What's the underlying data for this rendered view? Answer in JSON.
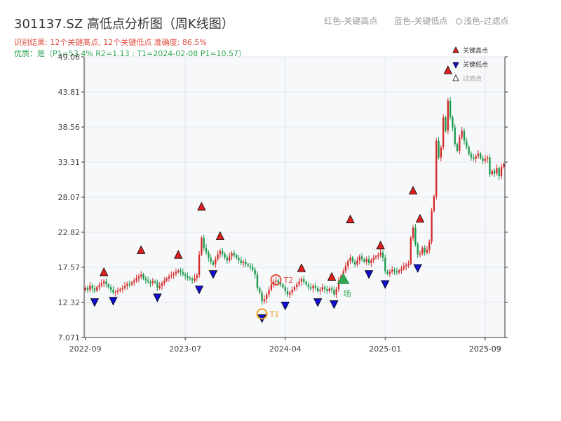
{
  "title": "301137.SZ 高低点分析图（周K线图）",
  "top_legend": {
    "red": "红色-关键高点",
    "blue": "蓝色-关键低点",
    "gray": "浅色-过滤点"
  },
  "subtitle1": "识别结果: 12个关键高点, 12个关键低点  准确度: 86.5%",
  "subtitle2": "优质：是（P1=53.4%  R2=1.13 ; T1=2024-02-08 P1=10.57）",
  "colors": {
    "up": "#d42a2a",
    "down": "#1a9a4a",
    "high_marker": "#e02020",
    "low_marker": "#1010d0",
    "grid": "#e3e7ed",
    "plot_bg": "#f6f8fa",
    "t1": "#f0a020",
    "t2": "#e05040",
    "launch": "#2fa552"
  },
  "chart_data": {
    "type": "candlestick",
    "ylim": [
      7.071,
      49.06
    ],
    "y_ticks": [
      "7.071",
      "12.32",
      "17.57",
      "22.82",
      "28.07",
      "33.31",
      "38.56",
      "43.81",
      "49.06"
    ],
    "x_ticks": [
      {
        "week": 0,
        "label": "2022-09"
      },
      {
        "week": 43,
        "label": "2023-07"
      },
      {
        "week": 86,
        "label": "2024-04"
      },
      {
        "week": 129,
        "label": "2025-01"
      },
      {
        "week": 172,
        "label": "2025-09"
      },
      {
        "week": 172,
        "label": "2025-09"
      }
    ],
    "legend": {
      "high": "关键高点",
      "low": "关键低点",
      "filtered": "过滤点"
    },
    "key_highs": [
      {
        "week": 8,
        "price": 16.0
      },
      {
        "week": 24,
        "price": 19.3
      },
      {
        "week": 40,
        "price": 18.6
      },
      {
        "week": 50,
        "price": 25.8
      },
      {
        "week": 58,
        "price": 21.4
      },
      {
        "week": 93,
        "price": 16.6
      },
      {
        "week": 106,
        "price": 15.3
      },
      {
        "week": 114,
        "price": 23.9
      },
      {
        "week": 127,
        "price": 20.0
      },
      {
        "week": 141,
        "price": 28.2
      },
      {
        "week": 144,
        "price": 24.0
      },
      {
        "week": 156,
        "price": 46.2
      }
    ],
    "key_lows": [
      {
        "week": 4,
        "price": 13.2
      },
      {
        "week": 12,
        "price": 13.4
      },
      {
        "week": 31,
        "price": 13.9
      },
      {
        "week": 49,
        "price": 15.1
      },
      {
        "week": 55,
        "price": 17.4
      },
      {
        "week": 76,
        "price": 10.8
      },
      {
        "week": 86,
        "price": 12.7
      },
      {
        "week": 100,
        "price": 13.2
      },
      {
        "week": 107,
        "price": 12.9
      },
      {
        "week": 122,
        "price": 17.4
      },
      {
        "week": 129,
        "price": 15.9
      },
      {
        "week": 143,
        "price": 18.3
      }
    ],
    "annotations": {
      "t1": {
        "label": "T1",
        "week": 76,
        "price": 10.6
      },
      "t2": {
        "label": "T2",
        "week": 82,
        "price": 15.7
      },
      "launch": {
        "label": "场",
        "week": 111,
        "price": 15.8
      }
    },
    "closes": [
      14.5,
      14.2,
      14.8,
      14.4,
      14.1,
      14.6,
      14.9,
      15.2,
      15.5,
      15.0,
      14.6,
      14.2,
      13.8,
      13.9,
      14.1,
      14.3,
      14.5,
      14.8,
      15.1,
      15.0,
      15.3,
      15.6,
      15.9,
      16.2,
      16.5,
      15.9,
      15.6,
      15.4,
      15.2,
      15.5,
      15.3,
      14.5,
      14.8,
      15.2,
      15.6,
      15.9,
      16.2,
      16.4,
      16.6,
      16.9,
      17.1,
      16.8,
      16.5,
      16.3,
      16.0,
      15.8,
      15.6,
      16.0,
      16.4,
      19.5,
      22.0,
      20.5,
      19.8,
      19.0,
      18.4,
      18.0,
      18.8,
      19.5,
      20.0,
      19.6,
      19.0,
      18.6,
      19.2,
      19.7,
      19.4,
      19.0,
      18.6,
      18.2,
      18.4,
      18.0,
      17.8,
      17.6,
      17.2,
      16.5,
      14.5,
      13.8,
      12.5,
      12.8,
      13.5,
      14.2,
      15.0,
      15.4,
      15.6,
      15.3,
      15.0,
      14.6,
      14.0,
      13.5,
      13.8,
      14.2,
      14.6,
      15.0,
      15.4,
      15.8,
      15.4,
      15.0,
      14.6,
      14.4,
      14.8,
      14.5,
      14.0,
      14.2,
      14.6,
      14.3,
      14.0,
      14.4,
      14.2,
      13.5,
      14.3,
      15.6,
      16.3,
      17.0,
      17.8,
      18.5,
      19.0,
      18.4,
      18.0,
      18.6,
      19.2,
      18.8,
      18.4,
      18.8,
      18.2,
      18.6,
      19.0,
      19.2,
      19.4,
      19.8,
      19.0,
      17.0,
      16.6,
      16.9,
      17.2,
      17.0,
      16.8,
      17.1,
      17.4,
      17.7,
      17.9,
      18.1,
      22.0,
      23.5,
      21.0,
      19.5,
      19.6,
      20.5,
      19.8,
      20.2,
      21.4,
      26.0,
      28.2,
      36.5,
      34.0,
      35.5,
      40.0,
      38.0,
      42.5,
      40.0,
      38.5,
      36.0,
      35.0,
      37.0,
      38.0,
      36.5,
      35.6,
      34.5,
      34.0,
      33.8,
      34.2,
      34.6,
      33.9,
      33.5,
      33.8,
      34.0,
      31.5,
      32.0,
      31.6,
      32.4,
      31.2,
      32.6,
      33.0
    ]
  }
}
